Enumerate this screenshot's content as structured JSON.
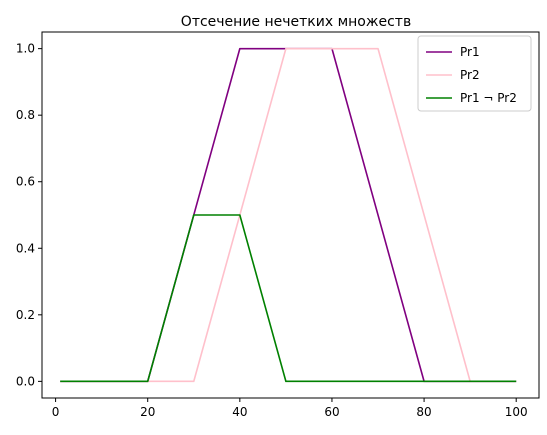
{
  "chart_data": {
    "type": "line",
    "title": "Отсечение нечетких множеств",
    "xlabel": "",
    "ylabel": "",
    "xlim": [
      -2.95,
      104.95
    ],
    "ylim": [
      -0.05,
      1.05
    ],
    "x_ticks": [
      0,
      20,
      40,
      60,
      80,
      100
    ],
    "y_ticks": [
      0.0,
      0.2,
      0.4,
      0.6,
      0.8,
      1.0
    ],
    "x_tick_labels": [
      "0",
      "20",
      "40",
      "60",
      "80",
      "100"
    ],
    "y_tick_labels": [
      "0.0",
      "0.2",
      "0.4",
      "0.6",
      "0.8",
      "1.0"
    ],
    "grid": false,
    "legend_position": "top-right",
    "series": [
      {
        "name": "Pr1",
        "color": "#800080",
        "x": [
          1,
          20,
          40,
          60,
          80,
          100
        ],
        "y": [
          0,
          0,
          1,
          1,
          0,
          0
        ]
      },
      {
        "name": "Pr2",
        "color": "#ffc0cb",
        "x": [
          1,
          30,
          50,
          70,
          90,
          100
        ],
        "y": [
          0,
          0,
          1,
          1,
          0,
          0
        ]
      },
      {
        "name": "Pr1 ¬ Pr2",
        "color": "#008000",
        "x": [
          1,
          20,
          30,
          40,
          50,
          100
        ],
        "y": [
          0,
          0,
          0.5,
          0.5,
          0,
          0
        ]
      }
    ]
  }
}
